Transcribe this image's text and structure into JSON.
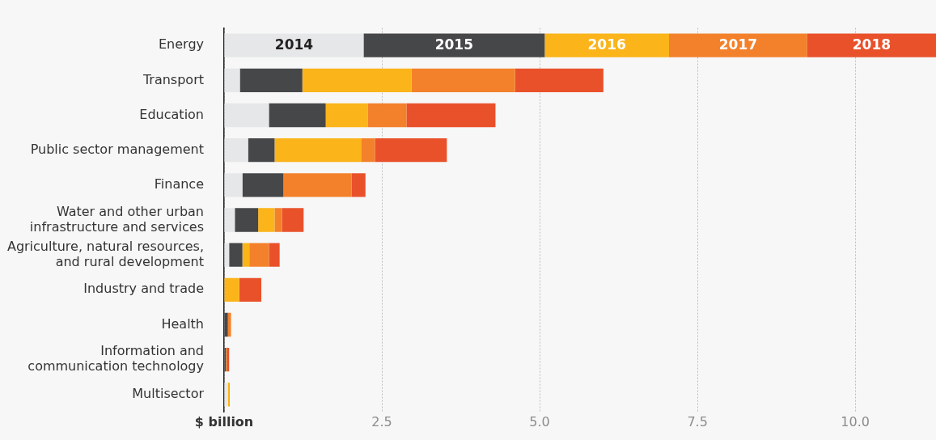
{
  "chart_data": {
    "type": "bar",
    "orientation": "horizontal",
    "stacked": true,
    "legend": false,
    "grid": "x",
    "categories": [
      "Energy",
      "Transport",
      "Education",
      "Public sector management",
      "Finance",
      "Water and other urban infrastructure and services",
      "Agriculture, natural resources, and rural development",
      "Industry and trade",
      "Health",
      "Information and communication technology",
      "Multisector"
    ],
    "series": [
      {
        "name": "2014",
        "color": "#e6e7e8",
        "values": [
          2.21,
          0.25,
          0.71,
          0.38,
          0.29,
          0.17,
          0.08,
          0,
          0,
          0,
          0.06
        ]
      },
      {
        "name": "2015",
        "color": "#464749",
        "values": [
          2.87,
          0.99,
          0.9,
          0.42,
          0.65,
          0.37,
          0.21,
          0,
          0.06,
          0.03,
          0
        ]
      },
      {
        "name": "2016",
        "color": "#fbb419",
        "values": [
          1.97,
          1.73,
          0.67,
          1.37,
          0,
          0.26,
          0.11,
          0.24,
          0,
          0.01,
          0.02
        ]
      },
      {
        "name": "2017",
        "color": "#f3812b",
        "values": [
          2.19,
          1.64,
          0.61,
          0.22,
          1.08,
          0.12,
          0.31,
          0,
          0.05,
          0,
          0.01
        ]
      },
      {
        "name": "2018",
        "color": "#e9512b",
        "values": [
          2.04,
          1.4,
          1.41,
          1.14,
          0.22,
          0.34,
          0.17,
          0.35,
          0,
          0.04,
          0
        ]
      }
    ],
    "xlim": [
      0,
      11.28
    ],
    "xticks": [
      {
        "value": 0,
        "label": "$ billion"
      },
      2.5,
      {
        "value": 5,
        "label": "5.0"
      },
      7.5,
      {
        "value": 10,
        "label": "10.0"
      }
    ]
  }
}
